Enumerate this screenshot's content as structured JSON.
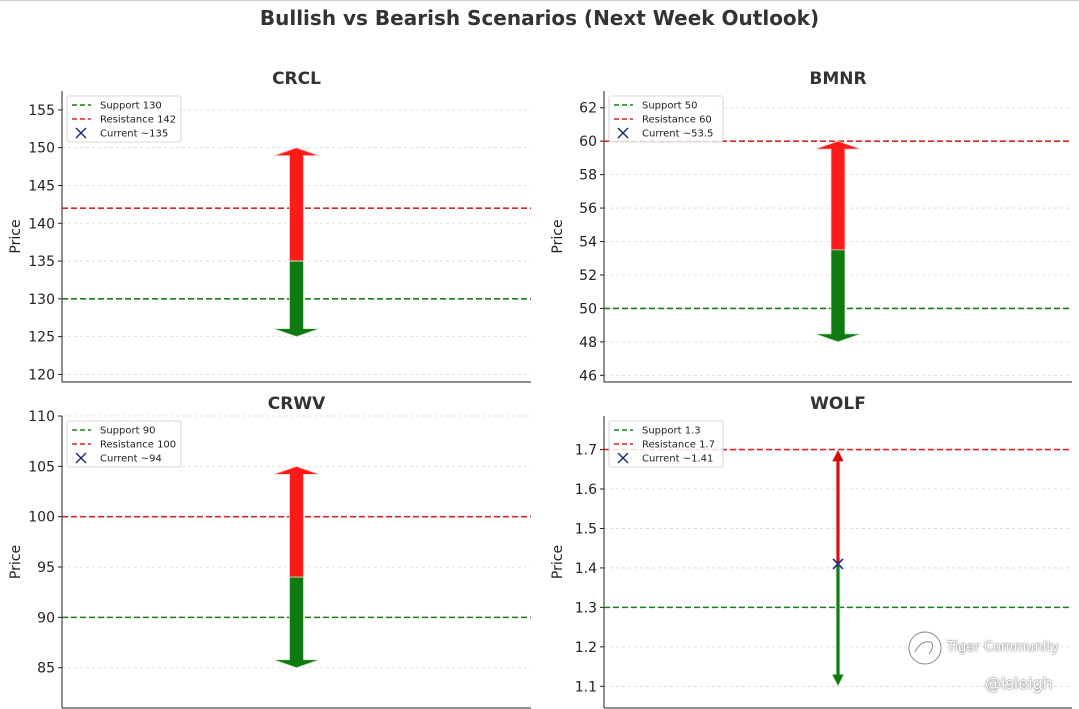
{
  "title": "Bullish vs Bearish Scenarios (Next Week Outlook)",
  "colors": {
    "support": "#1a7f1a",
    "resistance": "#d62728",
    "current": "#1f2f7a",
    "bull_arrow": "#ff1a1a",
    "bear_arrow": "#0f7a0f"
  },
  "watermark": {
    "brand": "Tiger Community",
    "handle": "@lsleigh"
  },
  "chart_data": [
    {
      "type": "line",
      "title": "CRCL",
      "ylabel": "Price",
      "ylim": [
        119,
        157.5
      ],
      "yticks": [
        120,
        125,
        130,
        135,
        140,
        145,
        150,
        155
      ],
      "support": 130,
      "resistance": 142,
      "current": 135,
      "bull_target": 150,
      "bear_target": 125,
      "arrow_style": "wide",
      "current_marker_visible": false,
      "legend": [
        "Support 130",
        "Resistance 142",
        "Current ~135"
      ],
      "legend_loc": "upper-left",
      "grid": true
    },
    {
      "type": "line",
      "title": "BMNR",
      "ylabel": "Price",
      "ylim": [
        45.6,
        63
      ],
      "yticks": [
        46,
        48,
        50,
        52,
        54,
        56,
        58,
        60,
        62
      ],
      "support": 50,
      "resistance": 60,
      "current": 53.5,
      "bull_target": 60,
      "bear_target": 48,
      "arrow_style": "wide",
      "current_marker_visible": false,
      "legend": [
        "Support 50",
        "Resistance 60",
        "Current ~53.5"
      ],
      "legend_loc": "upper-left",
      "grid": true
    },
    {
      "type": "line",
      "title": "CRWV",
      "ylabel": "Price",
      "ylim": [
        81,
        110
      ],
      "yticks": [
        85,
        90,
        95,
        100,
        105,
        110
      ],
      "support": 90,
      "resistance": 100,
      "current": 94,
      "bull_target": 105,
      "bear_target": 85,
      "arrow_style": "wide",
      "current_marker_visible": false,
      "legend": [
        "Support 90",
        "Resistance 100",
        "Current ~94"
      ],
      "legend_loc": "upper-left",
      "grid": true
    },
    {
      "type": "line",
      "title": "WOLF",
      "ylabel": "Price",
      "ylim": [
        1.045,
        1.785
      ],
      "yticks": [
        1.1,
        1.2,
        1.3,
        1.4,
        1.5,
        1.6,
        1.7
      ],
      "support": 1.3,
      "resistance": 1.7,
      "current": 1.41,
      "bull_target": 1.7,
      "bear_target": 1.1,
      "arrow_style": "thin",
      "current_marker_visible": true,
      "legend": [
        "Support 1.3",
        "Resistance 1.7",
        "Current ~1.41"
      ],
      "legend_loc": "upper-left",
      "grid": true
    }
  ]
}
